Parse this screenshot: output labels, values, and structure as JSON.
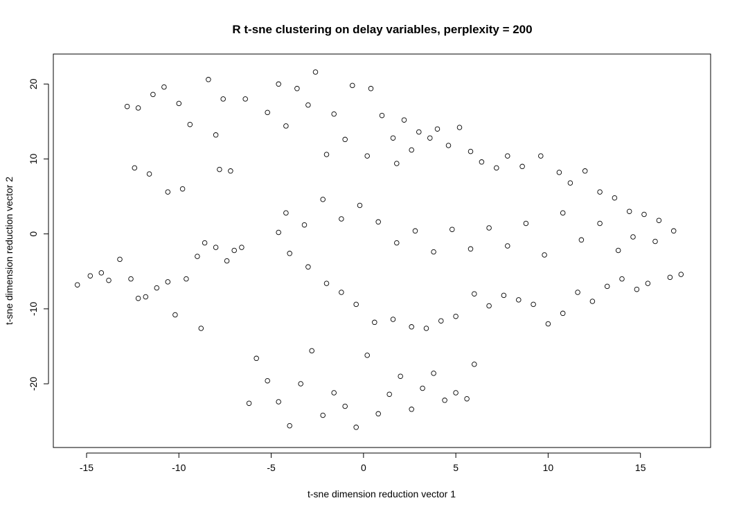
{
  "chart_data": {
    "type": "scatter",
    "title": "R t-sne clustering on delay variables, perplexity = 200",
    "xlabel": "t-sne dimension reduction vector 1",
    "ylabel": "t-sne dimension reduction vector 2",
    "xlim": [
      -16.8,
      18.8
    ],
    "ylim": [
      -28.5,
      24
    ],
    "xticks": [
      -15,
      -10,
      -5,
      0,
      5,
      10,
      15
    ],
    "yticks": [
      -20,
      -10,
      0,
      10,
      20
    ],
    "xtick_labels": [
      "-15",
      "-10",
      "-5",
      "0",
      "5",
      "10",
      "15"
    ],
    "ytick_labels": [
      "-20",
      "-10",
      "0",
      "10",
      "20"
    ],
    "marker": "open-circle",
    "marker_color": "#000000",
    "grid": false,
    "legend": "none",
    "sample_points": [
      [
        -15.5,
        -6.8
      ],
      [
        -14.8,
        -5.6
      ],
      [
        -14.2,
        -5.2
      ],
      [
        -13.8,
        -6.2
      ],
      [
        -13.2,
        -3.4
      ],
      [
        -12.6,
        -6.0
      ],
      [
        -12.2,
        -8.6
      ],
      [
        -11.8,
        -8.4
      ],
      [
        -11.2,
        -7.2
      ],
      [
        -10.6,
        -6.4
      ],
      [
        -10.2,
        -10.8
      ],
      [
        -9.6,
        -6.0
      ],
      [
        -9.0,
        -3.0
      ],
      [
        -8.6,
        -1.2
      ],
      [
        -8.0,
        -1.8
      ],
      [
        -7.4,
        -3.6
      ],
      [
        -7.0,
        -2.2
      ],
      [
        -6.6,
        -1.8
      ],
      [
        -12.8,
        17.0
      ],
      [
        -12.2,
        16.8
      ],
      [
        -11.4,
        18.6
      ],
      [
        -10.8,
        19.6
      ],
      [
        -10.0,
        17.4
      ],
      [
        -9.4,
        14.6
      ],
      [
        -12.4,
        8.8
      ],
      [
        -11.6,
        8.0
      ],
      [
        -10.6,
        5.6
      ],
      [
        -9.8,
        6.0
      ],
      [
        -8.0,
        13.2
      ],
      [
        -7.8,
        8.6
      ],
      [
        -7.2,
        8.4
      ],
      [
        -7.6,
        18.0
      ],
      [
        -8.4,
        20.6
      ],
      [
        -6.4,
        18.0
      ],
      [
        -5.2,
        16.2
      ],
      [
        -4.6,
        20.0
      ],
      [
        -4.2,
        14.4
      ],
      [
        -3.6,
        19.4
      ],
      [
        -3.0,
        17.2
      ],
      [
        -2.6,
        21.6
      ],
      [
        -1.6,
        16.0
      ],
      [
        -0.6,
        19.8
      ],
      [
        0.4,
        19.4
      ],
      [
        1.0,
        15.8
      ],
      [
        1.6,
        12.8
      ],
      [
        2.2,
        15.2
      ],
      [
        3.0,
        13.6
      ],
      [
        3.6,
        12.8
      ],
      [
        4.0,
        14.0
      ],
      [
        -1.0,
        12.6
      ],
      [
        -2.0,
        10.6
      ],
      [
        0.2,
        10.4
      ],
      [
        1.8,
        9.4
      ],
      [
        2.6,
        11.2
      ],
      [
        4.6,
        11.8
      ],
      [
        5.2,
        14.2
      ],
      [
        5.8,
        11.0
      ],
      [
        6.4,
        9.6
      ],
      [
        7.2,
        8.8
      ],
      [
        7.8,
        10.4
      ],
      [
        8.6,
        9.0
      ],
      [
        9.6,
        10.4
      ],
      [
        10.6,
        8.2
      ],
      [
        11.2,
        6.8
      ],
      [
        12.0,
        8.4
      ],
      [
        12.8,
        5.6
      ],
      [
        13.6,
        4.8
      ],
      [
        14.4,
        3.0
      ],
      [
        15.2,
        2.6
      ],
      [
        16.0,
        1.8
      ],
      [
        16.8,
        0.4
      ],
      [
        17.2,
        -5.4
      ],
      [
        16.6,
        -5.8
      ],
      [
        15.4,
        -6.6
      ],
      [
        14.8,
        -7.4
      ],
      [
        14.0,
        -6.0
      ],
      [
        13.2,
        -7.0
      ],
      [
        12.4,
        -9.0
      ],
      [
        11.6,
        -7.8
      ],
      [
        10.8,
        -10.6
      ],
      [
        10.0,
        -12.0
      ],
      [
        9.2,
        -9.4
      ],
      [
        8.4,
        -8.8
      ],
      [
        7.6,
        -8.2
      ],
      [
        6.8,
        -9.6
      ],
      [
        6.0,
        -8.0
      ],
      [
        5.0,
        -11.0
      ],
      [
        4.2,
        -11.6
      ],
      [
        3.4,
        -12.6
      ],
      [
        2.6,
        -12.4
      ],
      [
        1.6,
        -11.4
      ],
      [
        0.6,
        -11.8
      ],
      [
        -0.4,
        -9.4
      ],
      [
        -1.2,
        -7.8
      ],
      [
        -2.0,
        -6.6
      ],
      [
        -3.0,
        -4.4
      ],
      [
        -4.0,
        -2.6
      ],
      [
        -4.6,
        0.2
      ],
      [
        -4.2,
        2.8
      ],
      [
        -3.2,
        1.2
      ],
      [
        -2.2,
        4.6
      ],
      [
        -1.2,
        2.0
      ],
      [
        -0.2,
        3.8
      ],
      [
        0.8,
        1.6
      ],
      [
        1.8,
        -1.2
      ],
      [
        2.8,
        0.4
      ],
      [
        3.8,
        -2.4
      ],
      [
        4.8,
        0.6
      ],
      [
        5.8,
        -2.0
      ],
      [
        6.8,
        0.8
      ],
      [
        7.8,
        -1.6
      ],
      [
        8.8,
        1.4
      ],
      [
        9.8,
        -2.8
      ],
      [
        10.8,
        2.8
      ],
      [
        11.8,
        -0.8
      ],
      [
        12.8,
        1.4
      ],
      [
        13.8,
        -2.2
      ],
      [
        14.6,
        -0.4
      ],
      [
        15.8,
        -1.0
      ],
      [
        -5.8,
        -16.6
      ],
      [
        -5.2,
        -19.6
      ],
      [
        -4.6,
        -22.4
      ],
      [
        -4.0,
        -25.6
      ],
      [
        -3.4,
        -20.0
      ],
      [
        -2.8,
        -15.6
      ],
      [
        -2.2,
        -24.2
      ],
      [
        -1.6,
        -21.2
      ],
      [
        -1.0,
        -23.0
      ],
      [
        -0.4,
        -25.8
      ],
      [
        0.2,
        -16.2
      ],
      [
        0.8,
        -24.0
      ],
      [
        1.4,
        -21.4
      ],
      [
        2.0,
        -19.0
      ],
      [
        2.6,
        -23.4
      ],
      [
        3.2,
        -20.6
      ],
      [
        3.8,
        -18.6
      ],
      [
        4.4,
        -22.2
      ],
      [
        5.0,
        -21.2
      ],
      [
        5.6,
        -22.0
      ],
      [
        6.0,
        -17.4
      ],
      [
        -6.2,
        -22.6
      ],
      [
        -8.8,
        -12.6
      ]
    ]
  }
}
